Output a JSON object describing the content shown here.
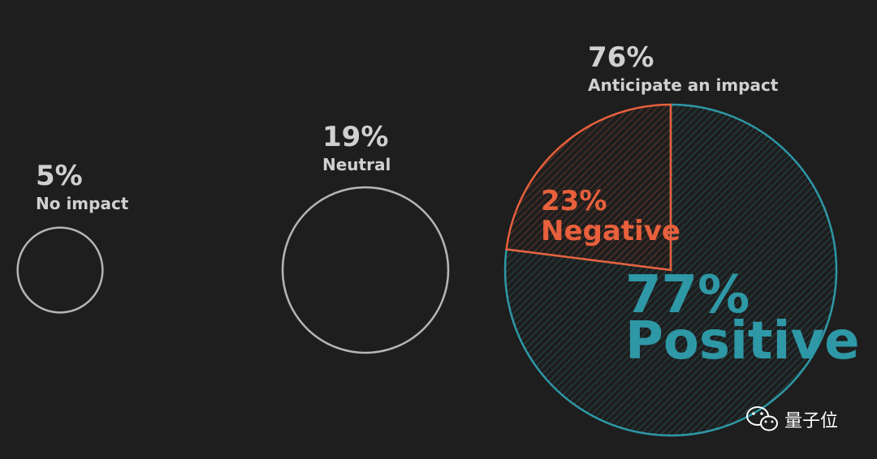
{
  "colors": {
    "background": "#1e1e1e",
    "circle_outline": "#b5b5b5",
    "label_text": "#d0d0d0",
    "negative": "#e8603c",
    "positive": "#2e98a6"
  },
  "chart_data": {
    "type": "pie",
    "groups": [
      {
        "value": 5,
        "value_label": "5%",
        "label": "No impact"
      },
      {
        "value": 19,
        "value_label": "19%",
        "label": "Neutral"
      },
      {
        "value": 76,
        "value_label": "76%",
        "label": "Anticipate an impact"
      }
    ],
    "breakdown": {
      "of": "Anticipate an impact",
      "slices": [
        {
          "name": "Negative",
          "value": 23,
          "value_label": "23%",
          "color": "#e8603c"
        },
        {
          "name": "Positive",
          "value": 77,
          "value_label": "77%",
          "color": "#2e98a6"
        }
      ]
    }
  },
  "watermark": {
    "icon": "wechat-icon",
    "text": "量子位"
  }
}
